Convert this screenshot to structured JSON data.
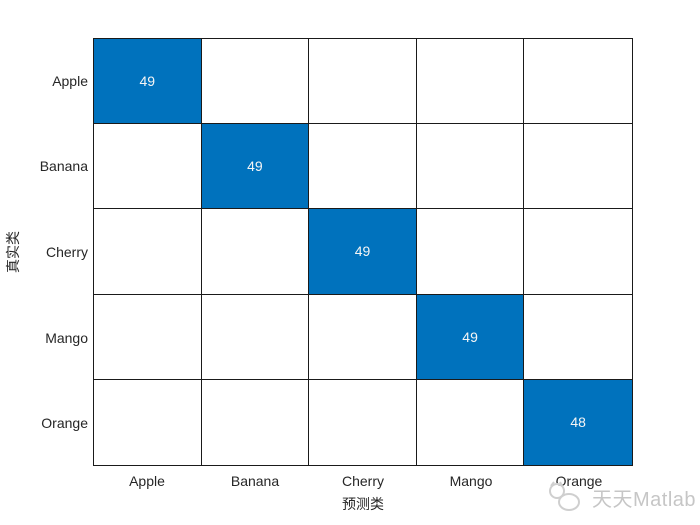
{
  "figure": {
    "background": "#ffffff",
    "watermark": {
      "text": "天天Matlab",
      "color": "#c6c6c6"
    }
  },
  "chart_data": {
    "type": "heatmap",
    "chart_kind": "confusion-matrix",
    "title": "",
    "xlabel": "预测类",
    "ylabel": "真实类",
    "x_categories": [
      "Apple",
      "Banana",
      "Cherry",
      "Mango",
      "Orange"
    ],
    "y_categories": [
      "Apple",
      "Banana",
      "Cherry",
      "Mango",
      "Orange"
    ],
    "display_matrix": [
      [
        "49",
        "",
        "",
        "",
        ""
      ],
      [
        "",
        "49",
        "",
        "",
        ""
      ],
      [
        "",
        "",
        "49",
        "",
        ""
      ],
      [
        "",
        "",
        "",
        "49",
        ""
      ],
      [
        "",
        "",
        "",
        "",
        "48"
      ]
    ],
    "diagonal_values": [
      49,
      49,
      49,
      49,
      48
    ],
    "colors": {
      "filled_cell": "#0072BD",
      "empty_cell": "#ffffff",
      "cell_text": "#f5f5f5",
      "grid_line": "#1a1a1a",
      "tick_label": "#262626"
    },
    "legend": "none",
    "grid": true
  }
}
